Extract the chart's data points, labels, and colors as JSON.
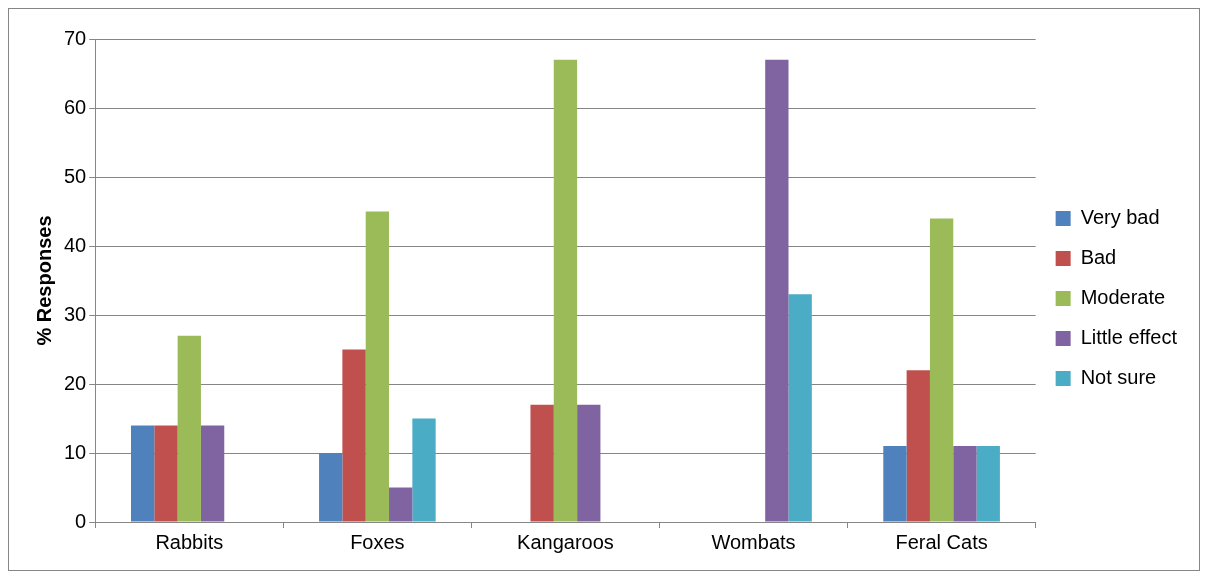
{
  "chart_data": {
    "type": "bar",
    "ylabel": "% Responses",
    "categories": [
      "Rabbits",
      "Foxes",
      "Kangaroos",
      "Wombats",
      "Feral Cats"
    ],
    "series": [
      {
        "name": "Very bad",
        "color": "#4f81bd",
        "values": [
          14,
          10,
          0,
          0,
          11
        ]
      },
      {
        "name": "Bad",
        "color": "#c0504d",
        "values": [
          14,
          25,
          17,
          0,
          22
        ]
      },
      {
        "name": "Moderate",
        "color": "#9bbb59",
        "values": [
          27,
          45,
          67,
          0,
          44
        ]
      },
      {
        "name": "Little effect",
        "color": "#8064a2",
        "values": [
          14,
          5,
          17,
          67,
          11
        ]
      },
      {
        "name": "Not sure",
        "color": "#4bacc6",
        "values": [
          0,
          15,
          0,
          33,
          11
        ]
      }
    ],
    "ylim": [
      0,
      70
    ],
    "yticks": [
      0,
      10,
      20,
      30,
      40,
      50,
      60,
      70
    ],
    "grid": "y",
    "legend": "right"
  }
}
